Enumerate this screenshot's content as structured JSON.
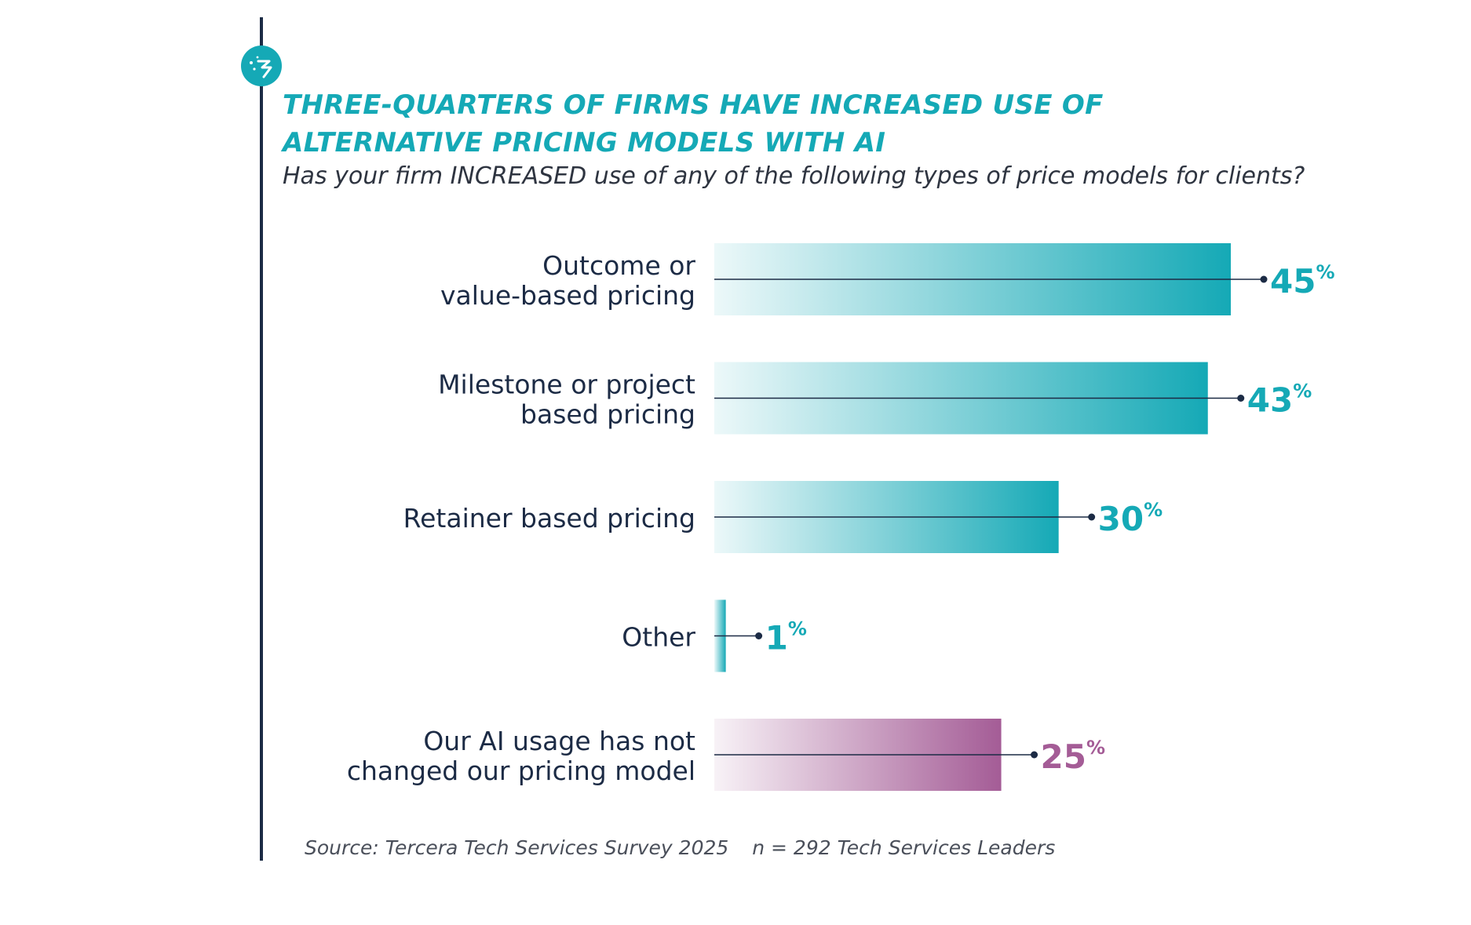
{
  "header": {
    "title_line1": "THREE-QUARTERS OF FIRMS HAVE INCREASED USE OF",
    "title_line2": "ALTERNATIVE PRICING MODELS WITH AI",
    "subtitle": "Has your firm INCREASED use of any of the following types of price models for clients?"
  },
  "footer": {
    "source": "Source: Tercera Tech Services Survey 2025",
    "sample": "n = 292 Tech Services Leaders"
  },
  "colors": {
    "teal": "#15a9b6",
    "purple": "#a45c96",
    "dark": "#1c2b45"
  },
  "logo_icon": "tercera-logo-icon",
  "chart_data": {
    "type": "bar",
    "orientation": "horizontal",
    "categories": [
      [
        "Outcome or",
        "value-based pricing"
      ],
      [
        "Milestone or project",
        "based pricing"
      ],
      [
        "Retainer based pricing"
      ],
      [
        "Other"
      ],
      [
        "Our AI usage has not",
        "changed our pricing model"
      ]
    ],
    "values": [
      45,
      43,
      30,
      1,
      25
    ],
    "value_labels": [
      "45",
      "43",
      "30",
      "1",
      "25"
    ],
    "unit": "%",
    "bar_colors": [
      "#15a9b6",
      "#15a9b6",
      "#15a9b6",
      "#15a9b6",
      "#a45c96"
    ],
    "xlim": [
      0,
      45
    ]
  }
}
